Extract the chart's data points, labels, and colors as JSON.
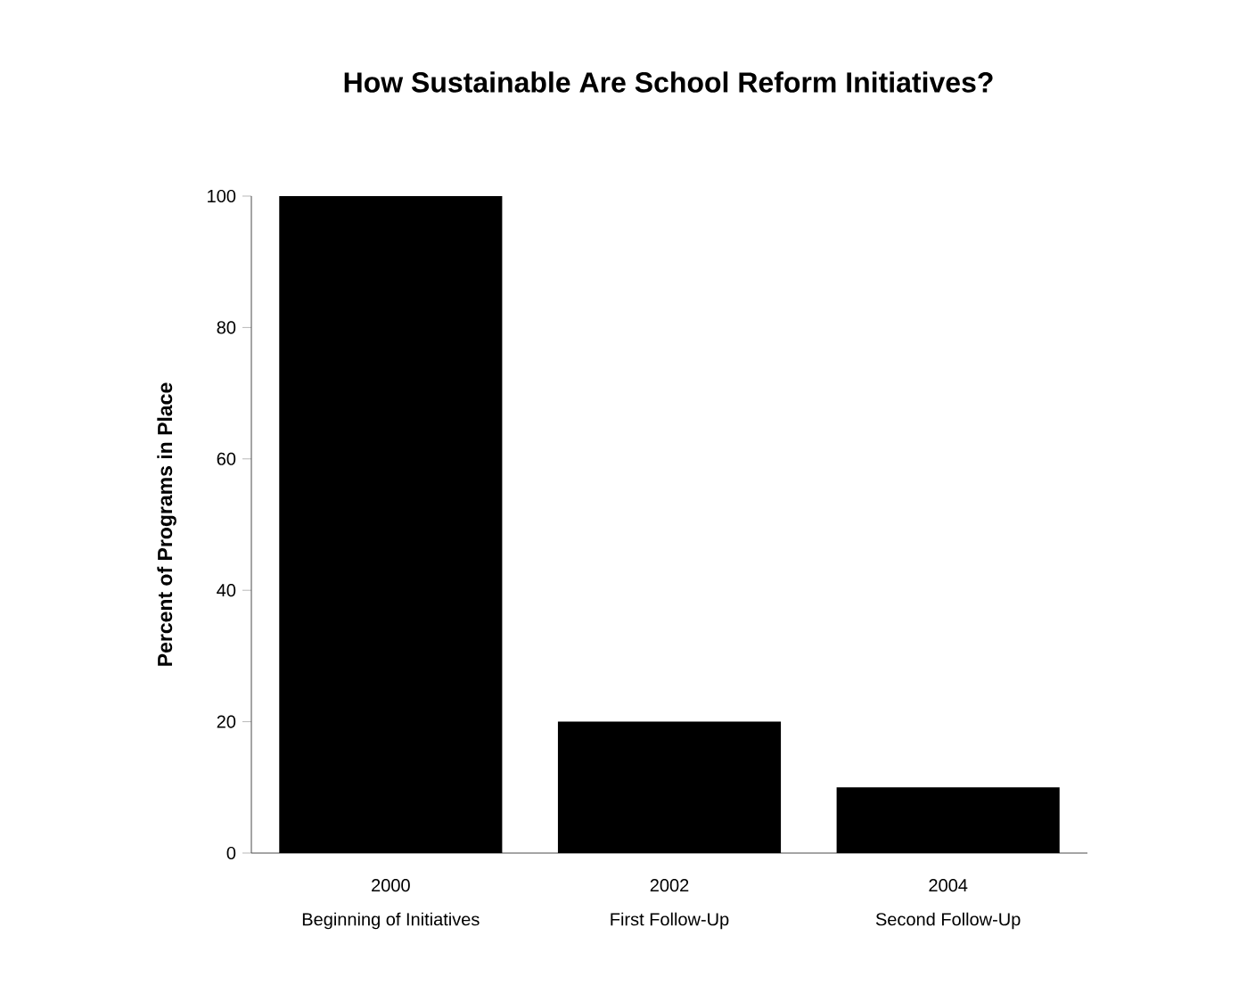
{
  "chart_data": {
    "type": "bar",
    "title": "How Sustainable Are School Reform Initiatives?",
    "ylabel": "Percent of Programs in Place",
    "categories": [
      "2000",
      "2002",
      "2004"
    ],
    "values": [
      100,
      20,
      10
    ],
    "color": "#000000",
    "ylim": [
      0,
      100
    ],
    "yticks": [
      0,
      20,
      40,
      60,
      80,
      100
    ],
    "grid": false,
    "annotations": [
      "Beginning of Initiatives",
      "First Follow-Up",
      "Second Follow-Up"
    ]
  }
}
